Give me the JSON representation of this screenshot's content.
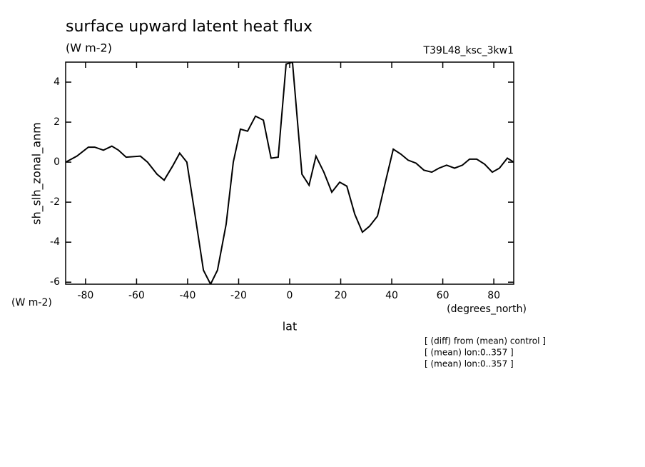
{
  "chart_data": {
    "type": "line",
    "title": "surface upward latent heat flux",
    "subtitle": "(W m-2)",
    "run_label": "T39L48_ksc_3kw1",
    "y_label": "sh_slh_zonal_anm",
    "y_unit_label": "(W m-2)",
    "x_label": "lat",
    "x_unit_label": "(degrees_north)",
    "annotations": [
      "[ (diff) from (mean) control ]",
      "[ (mean) lon:0..357 ]",
      "[ (mean) lon:0..357 ]"
    ],
    "x": [
      -87.8,
      -83.4,
      -78.9,
      -76.4,
      -73.0,
      -69.7,
      -67.1,
      -64.1,
      -58.5,
      -55.7,
      -52.0,
      -49.2,
      -45.9,
      -43.1,
      -40.3,
      -37.5,
      -33.8,
      -31.0,
      -28.3,
      -24.9,
      -22.1,
      -19.3,
      -16.5,
      -13.4,
      -10.3,
      -7.3,
      -4.5,
      -1.4,
      1.1,
      4.8,
      7.6,
      10.3,
      13.4,
      16.5,
      19.6,
      22.4,
      25.5,
      28.5,
      31.3,
      34.4,
      37.5,
      40.6,
      43.6,
      46.4,
      49.5,
      52.6,
      55.7,
      58.5,
      61.5,
      64.6,
      67.7,
      70.5,
      73.3,
      76.4,
      79.4,
      82.2,
      85.3,
      87.8
    ],
    "series": [
      {
        "color": "#000000",
        "values": [
          0,
          0.3,
          0.75,
          0.75,
          0.6,
          0.8,
          0.6,
          0.25,
          0.3,
          0,
          -0.6,
          -0.9,
          -0.2,
          0.45,
          0,
          -2.3,
          -5.4,
          -6.1,
          -5.4,
          -3.1,
          0,
          1.65,
          1.55,
          2.3,
          2.1,
          0.2,
          0.25,
          4.9,
          5.0,
          -0.6,
          -1.15,
          0.3,
          -0.5,
          -1.5,
          -1.0,
          -1.2,
          -2.6,
          -3.5,
          -3.2,
          -2.7,
          -1.0,
          0.65,
          0.4,
          0.1,
          -0.05,
          -0.4,
          -0.5,
          -0.3,
          -0.15,
          -0.3,
          -0.15,
          0.15,
          0.15,
          -0.1,
          -0.5,
          -0.3,
          0.2,
          0
        ]
      }
    ],
    "xlim": [
      -87.8,
      87.8
    ],
    "ylim": [
      -6.1,
      5.0
    ],
    "xticks": [
      -80,
      -60,
      -40,
      -20,
      0,
      20,
      40,
      60,
      80
    ],
    "yticks": [
      -6,
      -4,
      -2,
      0,
      2,
      4
    ],
    "grid": false
  }
}
